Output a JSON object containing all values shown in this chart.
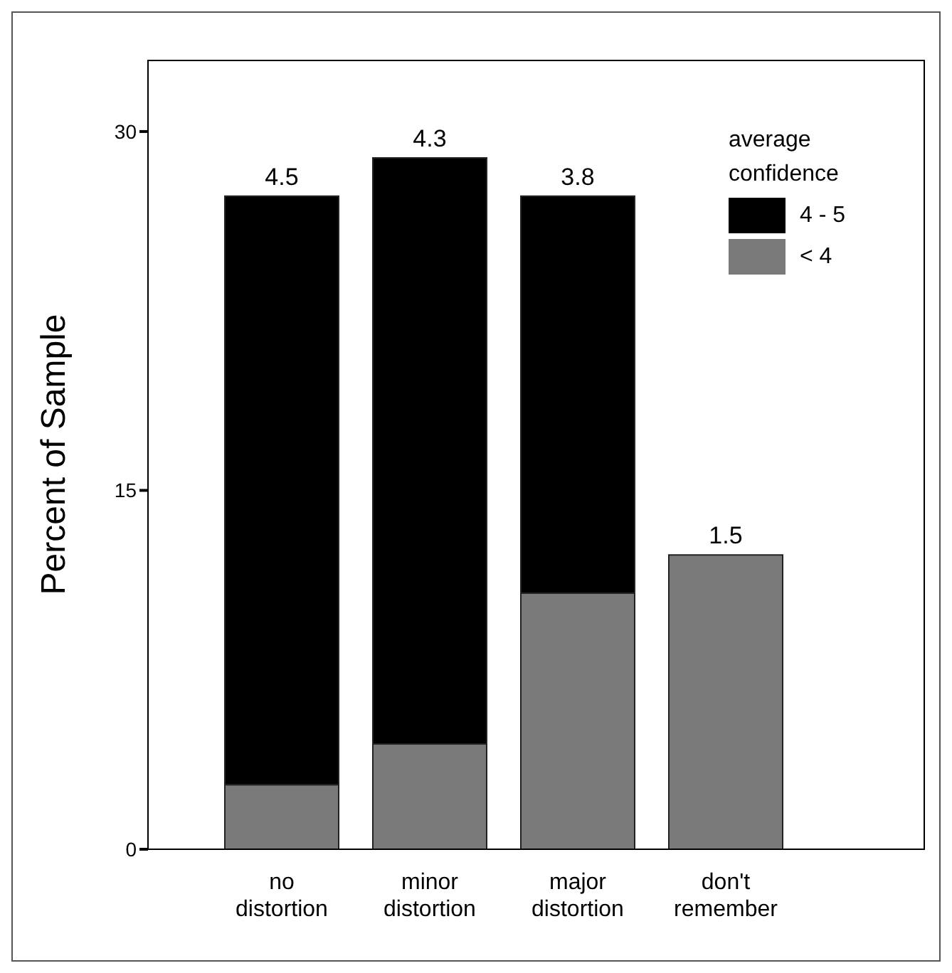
{
  "chart_data": {
    "type": "bar",
    "stacked": true,
    "ylabel": "Percent of Sample",
    "legend_title": "average confidence",
    "legend": "top right",
    "grid": false,
    "categories": [
      "no\ndistortion",
      "minor\ndistortion",
      "major\ndistortion",
      "don't\nremember"
    ],
    "series": [
      {
        "name": "< 4",
        "color": "#7a7a7a",
        "values": [
          2.7,
          4.4,
          10.7,
          12.3
        ]
      },
      {
        "name": "4 - 5",
        "color": "#000000",
        "values": [
          24.6,
          24.5,
          16.6,
          null
        ]
      }
    ],
    "ylim": [
      0,
      33
    ],
    "yticks": [
      0,
      15,
      30
    ],
    "annotations": [
      {
        "text": "4.5",
        "x": "no\ndistortion",
        "y": 27.3
      },
      {
        "text": "4.3",
        "x": "minor\ndistortion",
        "y": 28.9
      },
      {
        "text": "3.8",
        "x": "major\ndistortion",
        "y": 27.3
      },
      {
        "text": "1.5",
        "x": "don't\nremember",
        "y": 12.3
      }
    ]
  }
}
